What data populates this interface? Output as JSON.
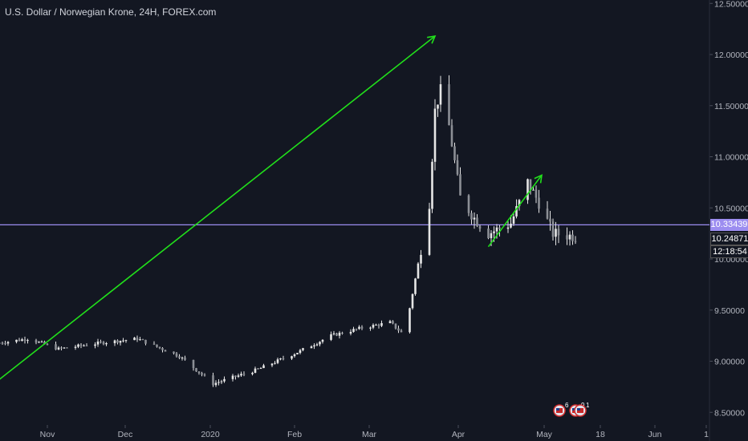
{
  "title": "U.S. Dollar / Norwegian Krone, 24H, FOREX.com",
  "colors": {
    "background": "#131722",
    "candle": "#e6e6e6",
    "arrow": "#21e01b",
    "horizontal_line": "#9c8df0",
    "axis_text": "#b2b5be",
    "last_price_bg": "#131722",
    "last_price_text": "#ffffff"
  },
  "price_tags": {
    "hline": "10.33439",
    "last": "10.24871",
    "countdown": "12:18:54"
  },
  "event_badges": [
    {
      "icon": "us-flag-icon",
      "count": "6"
    },
    {
      "icon": "us-flag-icon",
      "count": "9"
    },
    {
      "icon": "us-flag-icon",
      "count": "1"
    }
  ],
  "chart_data": {
    "type": "candlestick",
    "title": "U.S. Dollar / Norwegian Krone, 24H, FOREX.com",
    "y_ticks": [
      "12.50000",
      "12.00000",
      "11.50000",
      "11.00000",
      "10.50000",
      "10.00000",
      "9.50000",
      "9.00000",
      "8.50000"
    ],
    "y_tick_values": [
      12.5,
      12.0,
      11.5,
      11.0,
      10.5,
      10.0,
      9.5,
      9.0,
      8.5
    ],
    "x_ticks": [
      "Nov",
      "Dec",
      "2020",
      "Feb",
      "Mar",
      "Apr",
      "May",
      "18",
      "Jun",
      "1"
    ],
    "ylim": [
      8.4,
      12.55
    ],
    "horizontal_line": 10.33439,
    "last_price": 10.24871,
    "price_anchors": [
      {
        "date": "2019-10-15",
        "price": 9.18
      },
      {
        "date": "2019-10-25",
        "price": 9.22
      },
      {
        "date": "2019-11-05",
        "price": 9.12
      },
      {
        "date": "2019-11-20",
        "price": 9.18
      },
      {
        "date": "2019-12-03",
        "price": 9.22
      },
      {
        "date": "2019-12-18",
        "price": 9.05
      },
      {
        "date": "2019-12-30",
        "price": 8.78
      },
      {
        "date": "2020-01-15",
        "price": 8.92
      },
      {
        "date": "2020-01-30",
        "price": 9.1
      },
      {
        "date": "2020-02-10",
        "price": 9.25
      },
      {
        "date": "2020-02-20",
        "price": 9.32
      },
      {
        "date": "2020-03-02",
        "price": 9.38
      },
      {
        "date": "2020-03-06",
        "price": 9.28
      },
      {
        "date": "2020-03-09",
        "price": 9.52
      },
      {
        "date": "2020-03-12",
        "price": 9.95
      },
      {
        "date": "2020-03-16",
        "price": 10.55
      },
      {
        "date": "2020-03-18",
        "price": 11.45
      },
      {
        "date": "2020-03-20",
        "price": 11.65
      },
      {
        "date": "2020-03-23",
        "price": 11.3
      },
      {
        "date": "2020-03-27",
        "price": 10.6
      },
      {
        "date": "2020-04-01",
        "price": 10.4
      },
      {
        "date": "2020-04-06",
        "price": 10.25
      },
      {
        "date": "2020-04-14",
        "price": 10.35
      },
      {
        "date": "2020-04-20",
        "price": 10.75
      },
      {
        "date": "2020-04-24",
        "price": 10.55
      },
      {
        "date": "2020-04-29",
        "price": 10.25
      },
      {
        "date": "2020-05-07",
        "price": 10.22
      }
    ],
    "annotations": [
      {
        "type": "arrow",
        "from": {
          "date": "2019-10-13",
          "price": 8.78
        },
        "to": {
          "date": "2020-03-18",
          "price": 12.18
        }
      },
      {
        "type": "arrow",
        "from": {
          "date": "2020-04-06",
          "price": 10.12
        },
        "to": {
          "date": "2020-04-25",
          "price": 10.82
        }
      }
    ]
  }
}
